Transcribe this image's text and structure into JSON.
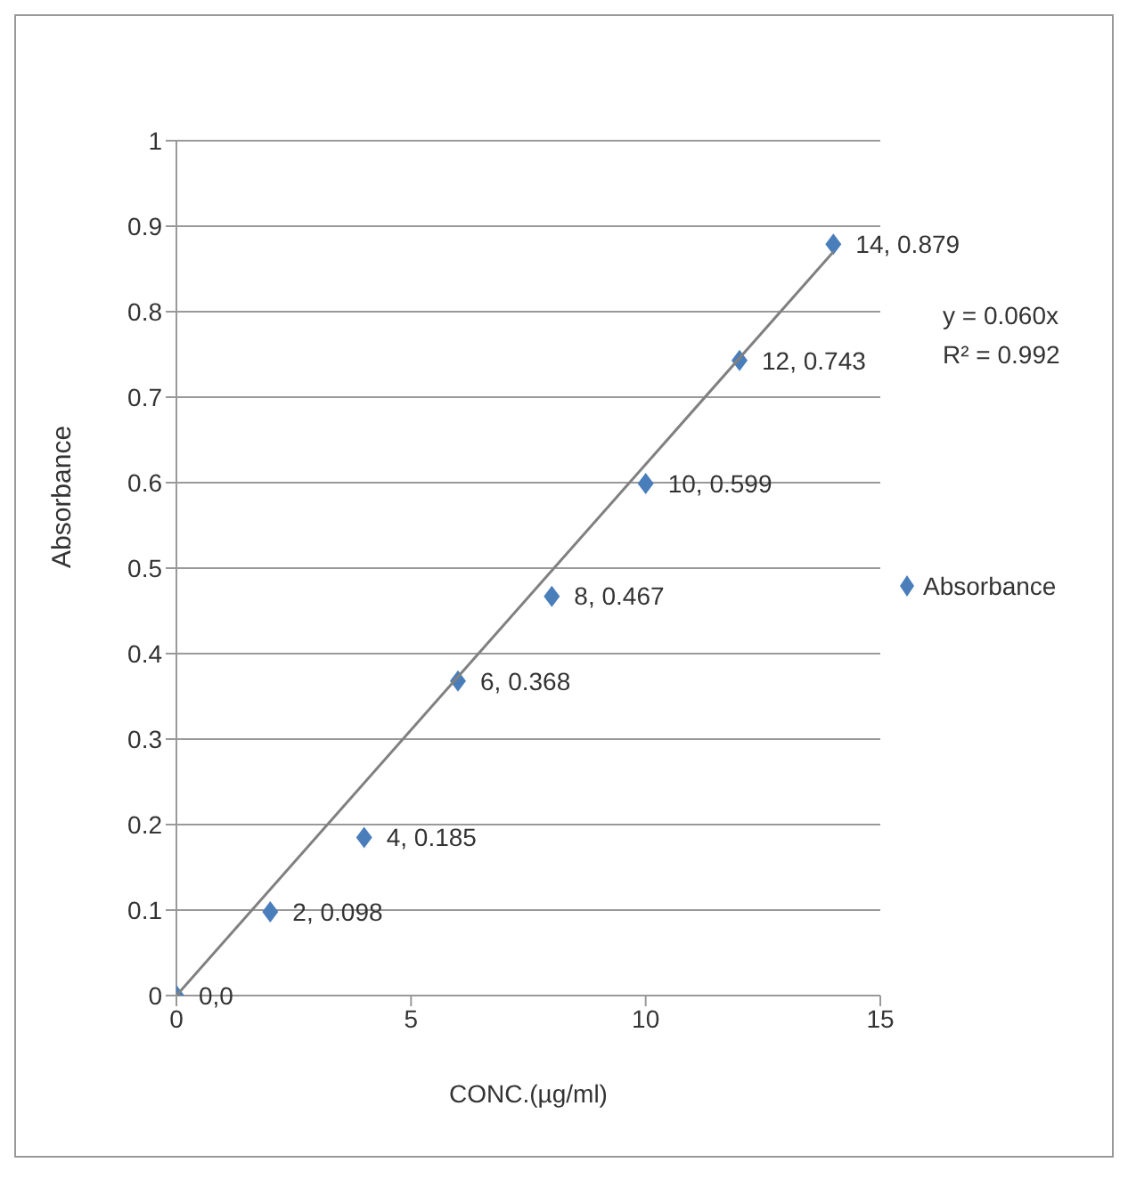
{
  "chart_data": {
    "type": "scatter",
    "xlabel": "CONC.(µg/ml)",
    "ylabel": "Absorbance",
    "xlim": [
      0,
      15
    ],
    "xticks": [
      0,
      5,
      10,
      15
    ],
    "ylim": [
      0,
      1
    ],
    "yticks": [
      0,
      0.1,
      0.2,
      0.3,
      0.4,
      0.5,
      0.6,
      0.7,
      0.8,
      0.9,
      1
    ],
    "grid": "y",
    "legend": "right",
    "marker": "diamond",
    "annotations": [
      "y = 0.060x",
      "R² = 0.992"
    ],
    "series": [
      {
        "name": "Absorbance",
        "color": "#4a7ebb",
        "x": [
          0,
          2,
          4,
          6,
          8,
          10,
          12,
          14
        ],
        "values": [
          0,
          0.098,
          0.185,
          0.368,
          0.467,
          0.599,
          0.743,
          0.879
        ],
        "value_labels": [
          "0,0",
          "2, 0.098",
          "4, 0.185",
          "6, 0.368",
          "8, 0.467",
          "10, 0.599",
          "12, 0.743",
          "14, 0.879"
        ]
      },
      {
        "type": "line",
        "color": "#808080",
        "x": [
          0,
          14
        ],
        "values": [
          0,
          0.87
        ],
        "marker": "none",
        "line_style": "solid"
      }
    ]
  }
}
